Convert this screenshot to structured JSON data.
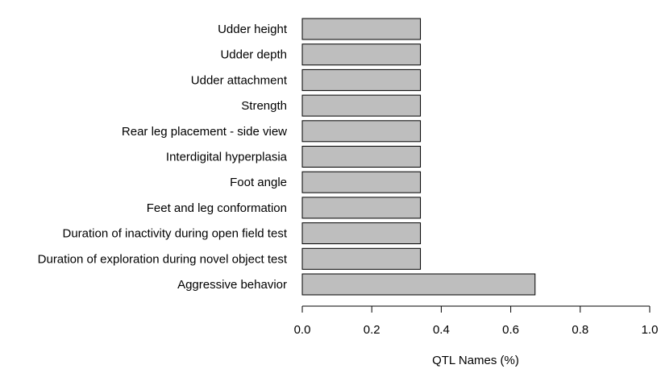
{
  "chart_data": {
    "type": "bar",
    "orientation": "horizontal",
    "categories": [
      "Udder height",
      "Udder depth",
      "Udder attachment",
      "Strength",
      "Rear leg placement - side view",
      "Interdigital hyperplasia",
      "Foot angle",
      "Feet and leg conformation",
      "Duration of inactivity during open field test",
      "Duration of exploration during novel object test",
      "Aggressive behavior"
    ],
    "values": [
      0.34,
      0.34,
      0.34,
      0.34,
      0.34,
      0.34,
      0.34,
      0.34,
      0.34,
      0.34,
      0.67
    ],
    "xlabel": "QTL Names (%)",
    "ylabel": "",
    "title": "",
    "xlim": [
      0,
      1
    ],
    "xticks": [
      "0.0",
      "0.2",
      "0.4",
      "0.6",
      "0.8",
      "1.0"
    ],
    "grid": false,
    "legend": "none",
    "colors": {
      "bar_fill": "#bebebe",
      "bar_stroke": "#000000"
    }
  }
}
